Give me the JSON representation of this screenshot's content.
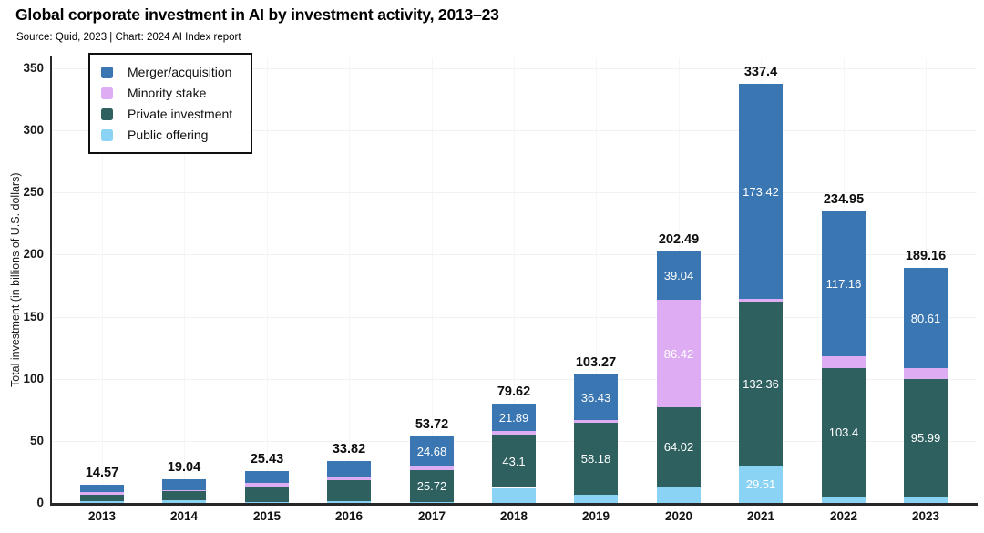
{
  "header": {
    "title": "Global corporate investment in AI by investment activity, 2013–23",
    "source": "Source: Quid, 2023 | Chart: 2024 AI Index report"
  },
  "chart_data": {
    "type": "bar",
    "stacked": true,
    "title": "Global corporate investment in AI by investment activity, 2013–23",
    "xlabel": "",
    "ylabel": "Total investment (in billions of U.S. dollars)",
    "ylim": [
      0,
      360
    ],
    "yticks": [
      0,
      50,
      100,
      150,
      200,
      250,
      300,
      350
    ],
    "grid": true,
    "legend_position": "top-left",
    "categories": [
      "2013",
      "2014",
      "2015",
      "2016",
      "2017",
      "2018",
      "2019",
      "2020",
      "2021",
      "2022",
      "2023"
    ],
    "totals": [
      "14.57",
      "19.04",
      "25.43",
      "33.82",
      "53.72",
      "79.62",
      "103.27",
      "202.49",
      "337.4",
      "234.95",
      "189.16"
    ],
    "stack_order_bottom_to_top": [
      "Public offering",
      "Private investment",
      "Minority stake",
      "Merger/acquisition"
    ],
    "series": [
      {
        "name": "Merger/acquisition",
        "color": "#3a76b1",
        "values": [
          6.03,
          8.54,
          9.63,
          13.02,
          24.68,
          21.89,
          36.43,
          39.04,
          173.42,
          117.16,
          80.61
        ],
        "labels": [
          null,
          null,
          null,
          null,
          "24.68",
          "21.89",
          "36.43",
          "39.04",
          "173.42",
          "117.16",
          "80.61"
        ]
      },
      {
        "name": "Minority stake",
        "color": "#ddacf2",
        "values": [
          1.93,
          0.8,
          2.4,
          2.7,
          2.42,
          2.53,
          2.2,
          86.42,
          2.11,
          9.04,
          8.42
        ],
        "labels": [
          null,
          null,
          null,
          null,
          null,
          null,
          null,
          "86.42",
          null,
          null,
          null
        ]
      },
      {
        "name": "Private investment",
        "color": "#2d605e",
        "values": [
          5.13,
          7.4,
          12.7,
          16.8,
          25.72,
          43.1,
          58.18,
          64.02,
          132.36,
          103.4,
          95.99
        ],
        "labels": [
          null,
          null,
          null,
          null,
          "25.72",
          "43.1",
          "58.18",
          "64.02",
          "132.36",
          "103.4",
          "95.99"
        ]
      },
      {
        "name": "Public offering",
        "color": "#8bd3f4",
        "values": [
          1.48,
          2.3,
          0.7,
          1.3,
          0.9,
          12.1,
          6.46,
          13.01,
          29.51,
          5.35,
          4.14
        ],
        "labels": [
          null,
          null,
          null,
          null,
          null,
          null,
          null,
          null,
          "29.51",
          null,
          null
        ]
      }
    ]
  }
}
